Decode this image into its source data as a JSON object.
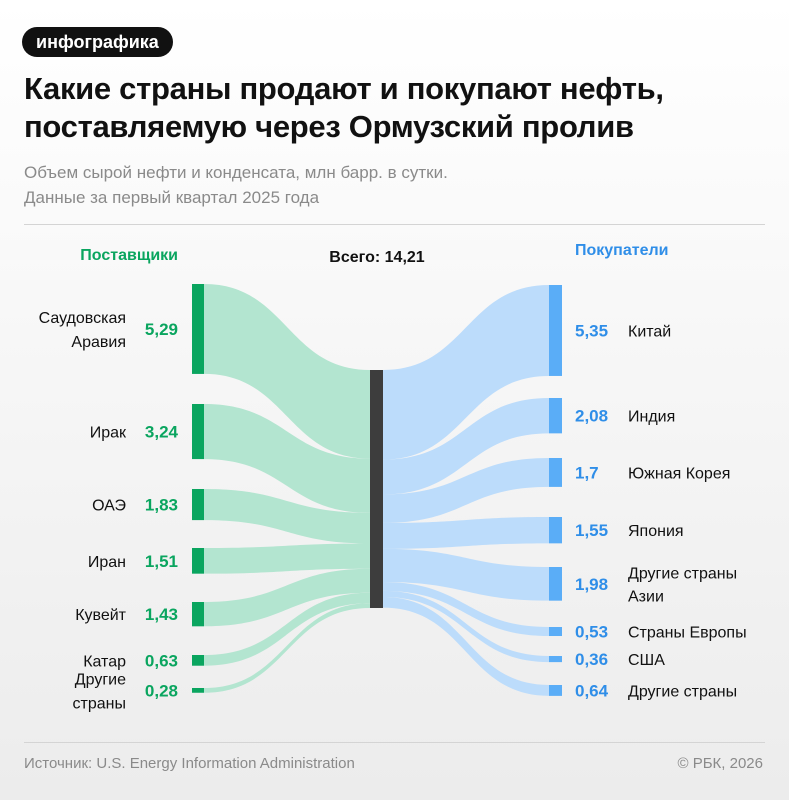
{
  "badge": "инфографика",
  "title": "Какие страны продают и покупают нефть, поставляемую через Ормузский пролив",
  "subtitle_line1": "Объем сырой нефти и конденсата, млн барр. в сутки.",
  "subtitle_line2": "Данные за первый квартал 2025 года",
  "footer": {
    "source": "Источник: U.S. Energy Information Administration",
    "copyright": "© РБК, 2026"
  },
  "colors": {
    "supplier": "#0aa55f",
    "supplier_flow": "#b3e5d0",
    "buyer": "#5aadf7",
    "buyer_flow": "#bcdcfb",
    "center": "#3d3d3d"
  },
  "chart_data": {
    "type": "sankey",
    "total_label": "Всего: 14,21",
    "total": 14.21,
    "suppliers_header": "Поставщики",
    "buyers_header": "Покупатели",
    "suppliers": [
      {
        "name": [
          "Саудовская",
          "Аравия"
        ],
        "value": 5.29,
        "label": "5,29"
      },
      {
        "name": [
          "Ирак"
        ],
        "value": 3.24,
        "label": "3,24"
      },
      {
        "name": [
          "ОАЭ"
        ],
        "value": 1.83,
        "label": "1,83"
      },
      {
        "name": [
          "Иран"
        ],
        "value": 1.51,
        "label": "1,51"
      },
      {
        "name": [
          "Кувейт"
        ],
        "value": 1.43,
        "label": "1,43"
      },
      {
        "name": [
          "Катар"
        ],
        "value": 0.63,
        "label": "0,63"
      },
      {
        "name": [
          "Другие",
          "страны"
        ],
        "value": 0.28,
        "label": "0,28"
      }
    ],
    "buyers": [
      {
        "name": [
          "Китай"
        ],
        "value": 5.35,
        "label": "5,35"
      },
      {
        "name": [
          "Индия"
        ],
        "value": 2.08,
        "label": "2,08"
      },
      {
        "name": [
          "Южная Корея"
        ],
        "value": 1.7,
        "label": "1,7"
      },
      {
        "name": [
          "Япония"
        ],
        "value": 1.55,
        "label": "1,55"
      },
      {
        "name": [
          "Другие страны",
          "Азии"
        ],
        "value": 1.98,
        "label": "1,98"
      },
      {
        "name": [
          "Страны Европы"
        ],
        "value": 0.53,
        "label": "0,53"
      },
      {
        "name": [
          "США"
        ],
        "value": 0.36,
        "label": "0,36"
      },
      {
        "name": [
          "Другие страны"
        ],
        "value": 0.64,
        "label": "0,64"
      }
    ]
  }
}
